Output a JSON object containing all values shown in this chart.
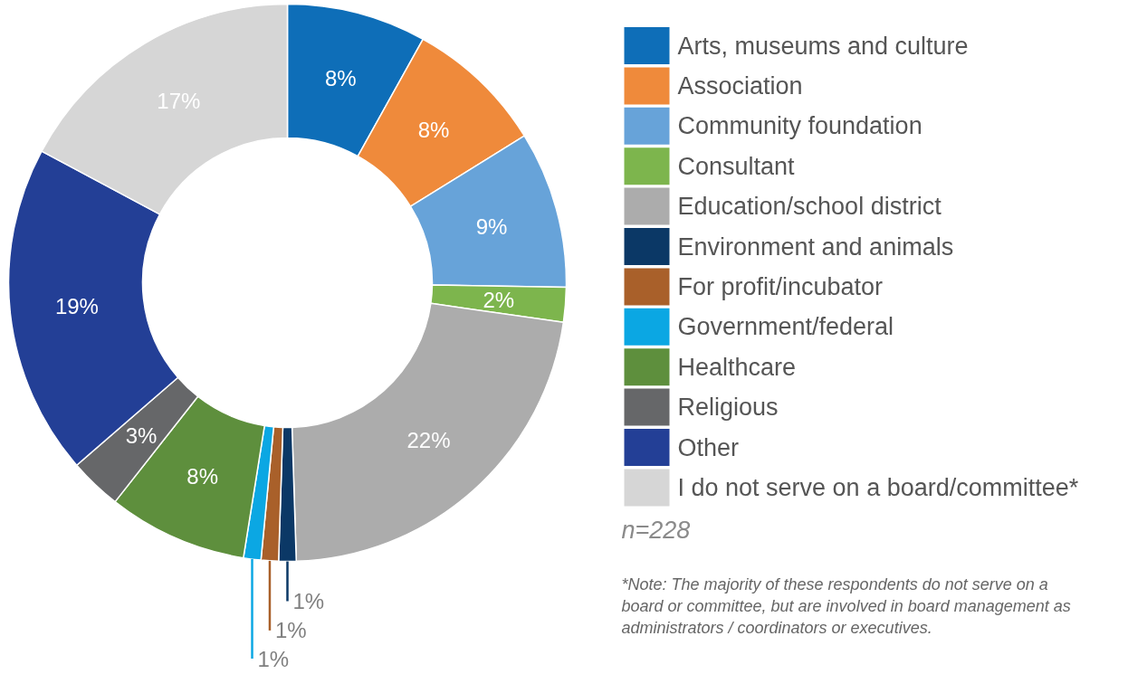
{
  "chart_data": {
    "type": "donut",
    "categories": [
      "Arts, museums and culture",
      "Association",
      "Community foundation",
      "Consultant",
      "Education/school district",
      "Environment and animals",
      "For profit/incubator",
      "Government/federal",
      "Healthcare",
      "Religious",
      "Other",
      "I do not serve on a board/committee*"
    ],
    "values": [
      8,
      8,
      9,
      2,
      22,
      1,
      1,
      1,
      8,
      3,
      19,
      17
    ],
    "colors": [
      "#0e6eb8",
      "#ef8a3b",
      "#67a3d9",
      "#7db54d",
      "#acacac",
      "#0b3866",
      "#a9602a",
      "#0ba7e3",
      "#5e8f3d",
      "#666769",
      "#233f96",
      "#d6d6d6"
    ],
    "value_labels": [
      "8%",
      "8%",
      "9%",
      "2%",
      "22%",
      "1%",
      "1%",
      "1%",
      "8%",
      "3%",
      "19%",
      "17%"
    ],
    "legend": "right",
    "annotations": [
      "n=228",
      "*Note: The majority of these respondents do not serve on a board or committee, but are involved in board management as administrators / coordinators or executives."
    ]
  }
}
